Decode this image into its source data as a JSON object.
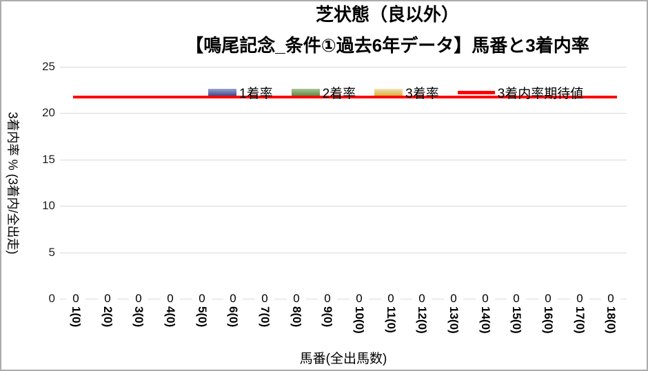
{
  "title": {
    "line1": "芝状態（良以外）",
    "line2": "【鳴尾記念_条件①過去6年データ】馬番と3着内率"
  },
  "legend": [
    {
      "label": "1着率",
      "marker": "bar",
      "color_top": "#9AA4CF",
      "color_bottom": "#3F4E8E"
    },
    {
      "label": "2着率",
      "marker": "bar",
      "color_top": "#A9C795",
      "color_bottom": "#5F8C49"
    },
    {
      "label": "3着率",
      "marker": "bar",
      "color_top": "#F0E3B4",
      "color_bottom": "#D9B23F"
    },
    {
      "label": "3着内率期待値",
      "marker": "line",
      "color": "#FF0000"
    }
  ],
  "colors": {
    "gridline": "#D9D9D9",
    "frame_border": "#ABABAB",
    "text": "#000000",
    "expected_line": "#FF0000"
  },
  "chart_data": {
    "type": "bar",
    "title": "芝状態（良以外） 【鳴尾記念_条件①過去6年データ】馬番と3着内率",
    "xlabel": "馬番(全出馬数)",
    "ylabel": "3着内率 % (3着内/全出走)",
    "ylim": [
      0,
      25
    ],
    "yticks": [
      0,
      5,
      10,
      15,
      20,
      25
    ],
    "grid": true,
    "legend_position": "top",
    "categories": [
      "1(0)",
      "2(0)",
      "3(0)",
      "4(0)",
      "5(0)",
      "6(0)",
      "7(0)",
      "8(0)",
      "9(0)",
      "10(0)",
      "11(0)",
      "12(0)",
      "13(0)",
      "14(0)",
      "15(0)",
      "16(0)",
      "17(0)",
      "18(0)"
    ],
    "series": [
      {
        "name": "1着率",
        "values": [
          0,
          0,
          0,
          0,
          0,
          0,
          0,
          0,
          0,
          0,
          0,
          0,
          0,
          0,
          0,
          0,
          0,
          0
        ]
      },
      {
        "name": "2着率",
        "values": [
          0,
          0,
          0,
          0,
          0,
          0,
          0,
          0,
          0,
          0,
          0,
          0,
          0,
          0,
          0,
          0,
          0,
          0
        ]
      },
      {
        "name": "3着率",
        "values": [
          0,
          0,
          0,
          0,
          0,
          0,
          0,
          0,
          0,
          0,
          0,
          0,
          0,
          0,
          0,
          0,
          0,
          0
        ]
      }
    ],
    "data_labels": [
      0,
      0,
      0,
      0,
      0,
      0,
      0,
      0,
      0,
      0,
      0,
      0,
      0,
      0,
      0,
      0,
      0,
      0
    ],
    "line_series": {
      "name": "3着内率期待値",
      "value": 21.7,
      "color": "#FF0000"
    }
  }
}
